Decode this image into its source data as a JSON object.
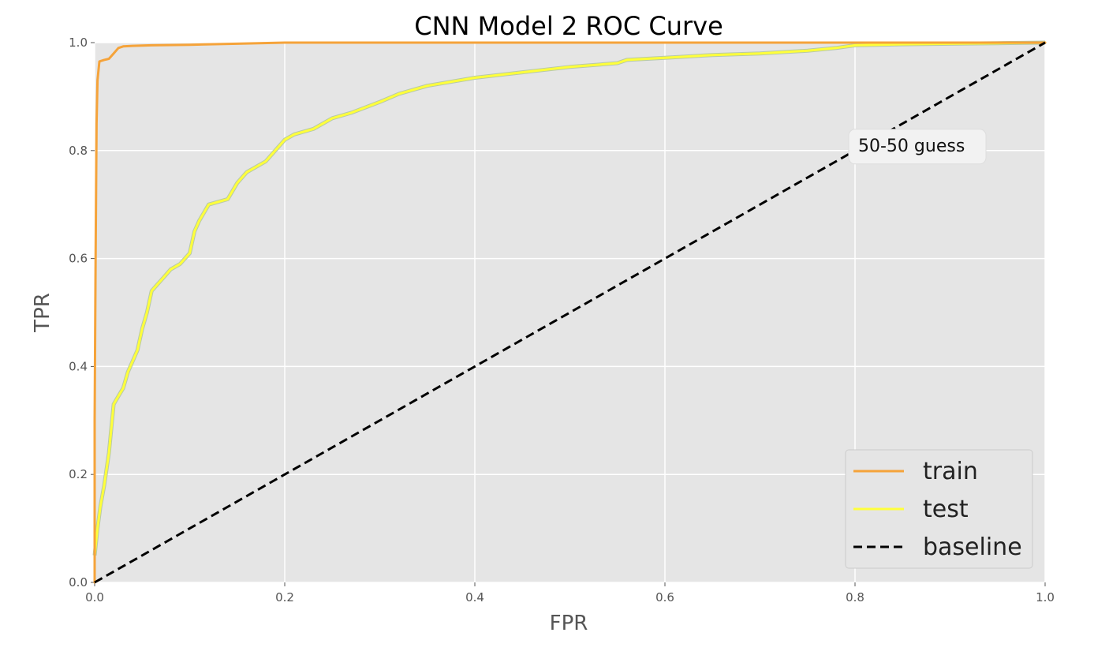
{
  "chart_data": {
    "type": "line",
    "title": "CNN Model 2 ROC Curve",
    "xlabel": "FPR",
    "ylabel": "TPR",
    "xlim": [
      0,
      1
    ],
    "ylim": [
      0,
      1
    ],
    "grid": true,
    "legend_position": "bottom-right",
    "x_ticks": [
      "0.0",
      "0.2",
      "0.4",
      "0.6",
      "0.8",
      "1.0"
    ],
    "y_ticks": [
      "0.0",
      "0.2",
      "0.4",
      "0.6",
      "0.8",
      "1.0"
    ],
    "annotation": {
      "text": "50-50 guess",
      "x": 0.8,
      "y": 0.8
    },
    "series": [
      {
        "name": "train",
        "color": "#f5a33a",
        "style": "solid",
        "x": [
          0,
          0,
          0.001,
          0.002,
          0.003,
          0.005,
          0.01,
          0.015,
          0.02,
          0.025,
          0.03,
          0.04,
          0.06,
          0.1,
          0.15,
          0.2,
          0.4,
          0.6,
          0.8,
          1.0
        ],
        "y": [
          0,
          0.3,
          0.6,
          0.85,
          0.93,
          0.965,
          0.968,
          0.97,
          0.98,
          0.99,
          0.993,
          0.994,
          0.995,
          0.996,
          0.998,
          1.0,
          1.0,
          1.0,
          1.0,
          1.0
        ]
      },
      {
        "name": "test",
        "color": "#ffff3b",
        "style": "solid",
        "x": [
          0,
          0.003,
          0.006,
          0.01,
          0.015,
          0.02,
          0.025,
          0.03,
          0.035,
          0.04,
          0.045,
          0.05,
          0.055,
          0.06,
          0.065,
          0.07,
          0.08,
          0.09,
          0.1,
          0.105,
          0.11,
          0.12,
          0.13,
          0.14,
          0.15,
          0.16,
          0.18,
          0.19,
          0.2,
          0.21,
          0.23,
          0.25,
          0.27,
          0.3,
          0.32,
          0.35,
          0.4,
          0.45,
          0.5,
          0.55,
          0.56,
          0.6,
          0.65,
          0.7,
          0.75,
          0.78,
          0.8,
          0.85,
          0.9,
          0.95,
          1.0
        ],
        "y": [
          0.05,
          0.1,
          0.14,
          0.18,
          0.24,
          0.33,
          0.345,
          0.36,
          0.39,
          0.41,
          0.43,
          0.47,
          0.5,
          0.54,
          0.55,
          0.56,
          0.58,
          0.59,
          0.61,
          0.65,
          0.67,
          0.7,
          0.705,
          0.71,
          0.74,
          0.76,
          0.78,
          0.8,
          0.82,
          0.83,
          0.84,
          0.86,
          0.87,
          0.89,
          0.905,
          0.92,
          0.935,
          0.945,
          0.955,
          0.962,
          0.968,
          0.972,
          0.977,
          0.98,
          0.985,
          0.99,
          0.995,
          0.997,
          0.998,
          0.999,
          1.0
        ]
      },
      {
        "name": "baseline",
        "color": "#000000",
        "style": "dashed",
        "x": [
          0,
          1
        ],
        "y": [
          0,
          1
        ]
      }
    ]
  }
}
